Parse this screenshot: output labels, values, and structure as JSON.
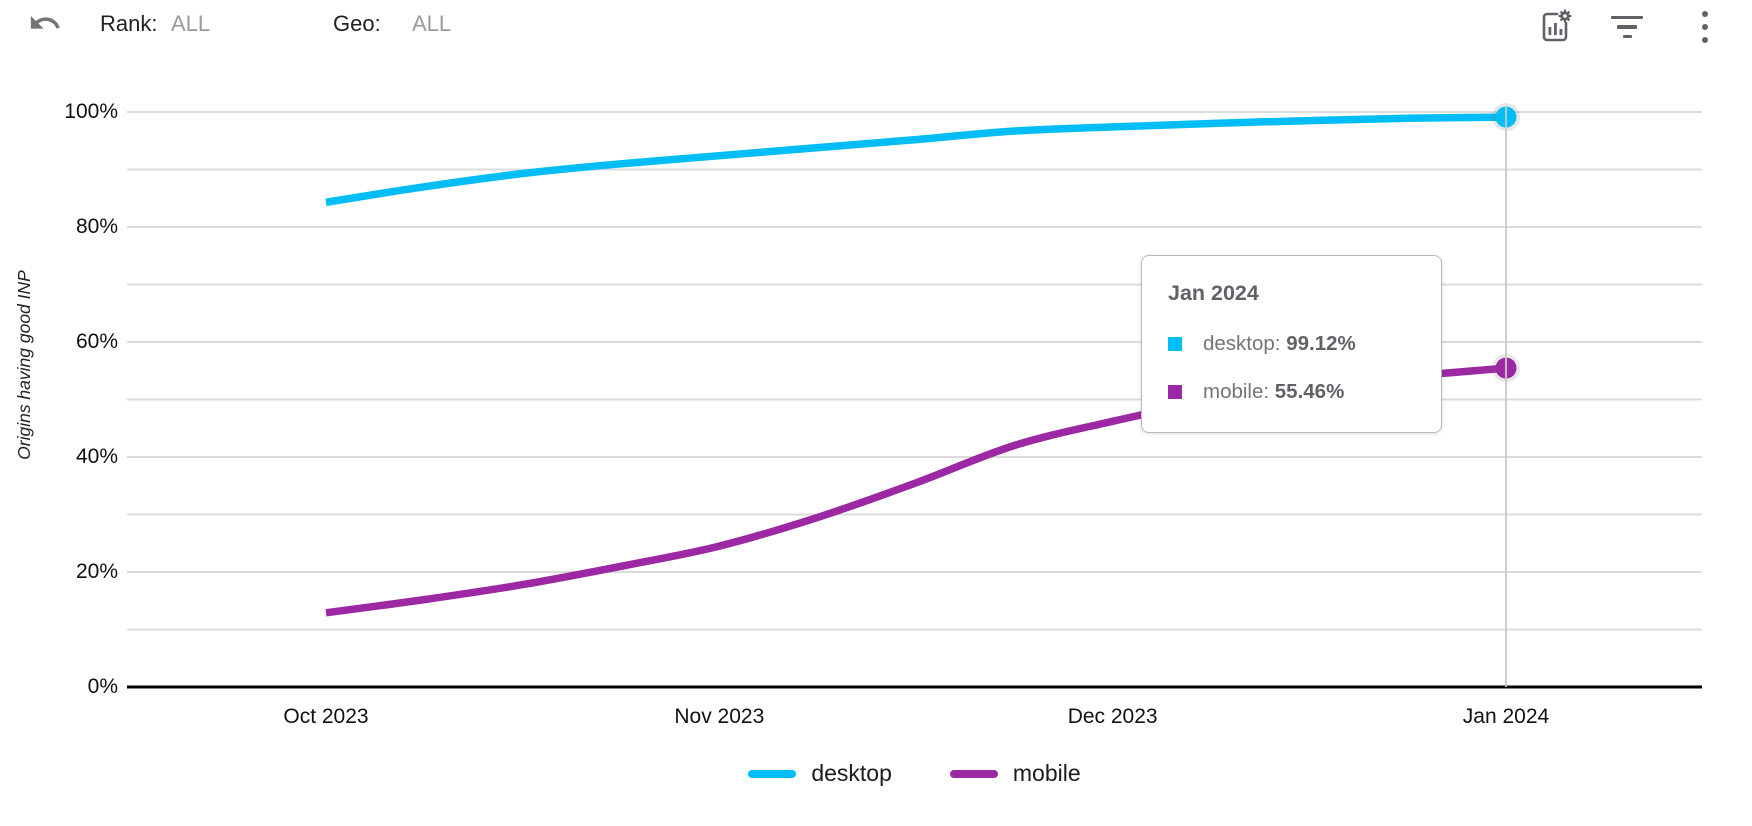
{
  "header": {
    "rank_label": "Rank:",
    "rank_value": "ALL",
    "geo_label": "Geo:",
    "geo_value": "ALL",
    "icons": [
      "undo-icon",
      "chart-settings-icon",
      "filter-icon",
      "kebab-menu-icon"
    ]
  },
  "chart_data": {
    "type": "line",
    "title": "",
    "ylabel": "Origins having good INP",
    "xlabel": "",
    "ylim": [
      0,
      100
    ],
    "grid": "horizontal, every 10%",
    "legend_position": "bottom",
    "x_tick_labels": [
      "Oct 2023",
      "Nov 2023",
      "Dec 2023",
      "Jan 2024"
    ],
    "y_tick_labels": [
      "0%",
      "20%",
      "40%",
      "60%",
      "80%",
      "100%"
    ],
    "series": [
      {
        "name": "desktop",
        "color": "#00bdf6",
        "unit": "%",
        "points_month_value": [
          [
            0,
            84.3
          ],
          [
            0.25,
            87.0
          ],
          [
            0.5,
            89.3
          ],
          [
            0.75,
            91.0
          ],
          [
            1,
            92.4
          ],
          [
            1.25,
            93.8
          ],
          [
            1.5,
            95.2
          ],
          [
            1.75,
            96.7
          ],
          [
            2,
            97.4
          ],
          [
            2.25,
            98.0
          ],
          [
            2.5,
            98.5
          ],
          [
            2.75,
            98.9
          ],
          [
            3,
            99.12
          ]
        ]
      },
      {
        "name": "mobile",
        "color": "#9c28a4",
        "unit": "%",
        "points_month_value": [
          [
            0,
            12.9
          ],
          [
            0.25,
            15.2
          ],
          [
            0.5,
            17.8
          ],
          [
            0.75,
            21.0
          ],
          [
            1,
            24.5
          ],
          [
            1.25,
            29.5
          ],
          [
            1.5,
            35.5
          ],
          [
            1.75,
            42.0
          ],
          [
            2,
            46.2
          ],
          [
            2.25,
            49.8
          ],
          [
            2.5,
            52.3
          ],
          [
            2.75,
            54.0
          ],
          [
            3,
            55.46
          ]
        ]
      }
    ],
    "highlighted_x": "Jan 2024",
    "highlighted_values": {
      "desktop": 99.12,
      "mobile": 55.46
    }
  },
  "tooltip": {
    "title": "Jan 2024",
    "items": [
      {
        "label": "desktop: ",
        "value": "99.12%",
        "color": "#00bdf6"
      },
      {
        "label": "mobile: ",
        "value": "55.46%",
        "color": "#9c28a4"
      }
    ]
  },
  "legend": {
    "items": [
      {
        "label": "desktop",
        "color": "#00bdf6"
      },
      {
        "label": "mobile",
        "color": "#9c28a4"
      }
    ]
  },
  "colors": {
    "desktop": "#00bdf6",
    "mobile": "#9c28a4",
    "gridline": "#dcdcdc",
    "axis": "#000000",
    "crosshair": "#c9c9c9",
    "icon_gray": "#5f6368",
    "muted_text": "#9a9a9a"
  }
}
